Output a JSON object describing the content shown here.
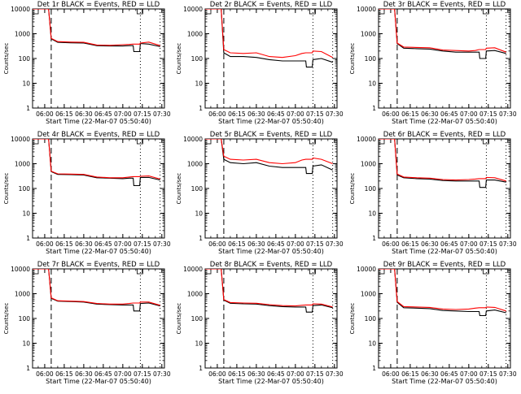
{
  "colors": {
    "events": "#000000",
    "lld": "#ff0000",
    "frame": "#000000",
    "background": "#ffffff"
  },
  "common": {
    "xlabel": "Start Time (22-Mar-07 05:50:40)",
    "ylabel": "Counts/sec",
    "xtick_labels": [
      "06:00",
      "06:15",
      "06:30",
      "06:45",
      "07:00",
      "07:15",
      "07:30"
    ],
    "ytick_labels": [
      "1",
      "10",
      "100",
      "1000",
      "10000"
    ],
    "xlim": [
      "05:50:40",
      "07:32:00"
    ],
    "ylim": [
      1,
      10000
    ],
    "yscale": "log",
    "grid": false,
    "markers_dashed_x": [
      "06:05:00"
    ],
    "markers_dotted_x": [
      "07:13:30",
      "07:28:40"
    ]
  },
  "chart_data": [
    {
      "type": "line",
      "title": "Det 1r BLACK = Events, RED = LLD",
      "x": [
        "05:50:40",
        "06:00:00",
        "06:03:00",
        "06:05:00",
        "06:10:00",
        "06:20:00",
        "06:30:00",
        "06:40:00",
        "06:50:00",
        "07:00:00",
        "07:05:00",
        "07:08:00",
        "07:08:30",
        "07:13:00",
        "07:13:30",
        "07:20:00",
        "07:28:40"
      ],
      "series": [
        {
          "name": "Events",
          "values": [
            10000,
            10000,
            10000,
            620,
            450,
            430,
            420,
            330,
            320,
            320,
            330,
            330,
            190,
            190,
            400,
            380,
            300
          ]
        },
        {
          "name": "LLD",
          "values": [
            10000,
            10000,
            10000,
            650,
            480,
            460,
            450,
            350,
            340,
            360,
            370,
            380,
            380,
            380,
            420,
            460,
            330
          ]
        }
      ]
    },
    {
      "type": "line",
      "title": "Det 2r BLACK = Events, RED = LLD",
      "x": [
        "05:50:40",
        "06:00:00",
        "06:03:00",
        "06:05:00",
        "06:10:00",
        "06:20:00",
        "06:30:00",
        "06:40:00",
        "06:50:00",
        "07:00:00",
        "07:05:00",
        "07:08:00",
        "07:08:30",
        "07:13:00",
        "07:13:30",
        "07:20:00",
        "07:28:40"
      ],
      "series": [
        {
          "name": "Events",
          "values": [
            10000,
            10000,
            10000,
            170,
            120,
            120,
            110,
            90,
            80,
            80,
            80,
            80,
            45,
            45,
            90,
            100,
            70
          ]
        },
        {
          "name": "LLD",
          "values": [
            10000,
            10000,
            10000,
            230,
            170,
            160,
            170,
            120,
            110,
            130,
            160,
            170,
            170,
            170,
            200,
            190,
            110
          ]
        }
      ]
    },
    {
      "type": "line",
      "title": "Det 3r BLACK = Events, RED = LLD",
      "x": [
        "05:50:40",
        "06:00:00",
        "06:03:00",
        "06:05:00",
        "06:10:00",
        "06:20:00",
        "06:30:00",
        "06:40:00",
        "06:50:00",
        "07:00:00",
        "07:05:00",
        "07:08:00",
        "07:08:30",
        "07:13:00",
        "07:13:30",
        "07:20:00",
        "07:28:40"
      ],
      "series": [
        {
          "name": "Events",
          "values": [
            10000,
            10000,
            10000,
            400,
            260,
            250,
            240,
            200,
            180,
            180,
            180,
            180,
            100,
            100,
            200,
            210,
            160
          ]
        },
        {
          "name": "LLD",
          "values": [
            10000,
            10000,
            10000,
            420,
            290,
            280,
            270,
            220,
            210,
            200,
            210,
            230,
            230,
            230,
            260,
            270,
            180
          ]
        }
      ]
    },
    {
      "type": "line",
      "title": "Det 4r BLACK = Events, RED = LLD",
      "x": [
        "05:50:40",
        "06:00:00",
        "06:03:00",
        "06:05:00",
        "06:10:00",
        "06:20:00",
        "06:30:00",
        "06:40:00",
        "06:50:00",
        "07:00:00",
        "07:05:00",
        "07:08:00",
        "07:08:30",
        "07:13:00",
        "07:13:30",
        "07:20:00",
        "07:28:40"
      ],
      "series": [
        {
          "name": "Events",
          "values": [
            10000,
            10000,
            10000,
            480,
            370,
            360,
            350,
            270,
            260,
            250,
            260,
            260,
            130,
            130,
            280,
            280,
            220
          ]
        },
        {
          "name": "LLD",
          "values": [
            10000,
            10000,
            10000,
            500,
            390,
            380,
            370,
            290,
            270,
            270,
            290,
            300,
            300,
            300,
            310,
            320,
            240
          ]
        }
      ]
    },
    {
      "type": "line",
      "title": "Det 5r BLACK = Events, RED = LLD",
      "x": [
        "05:50:40",
        "06:00:00",
        "06:03:00",
        "06:05:00",
        "06:10:00",
        "06:20:00",
        "06:30:00",
        "06:40:00",
        "06:50:00",
        "07:00:00",
        "07:05:00",
        "07:08:00",
        "07:08:30",
        "07:13:00",
        "07:13:30",
        "07:20:00",
        "07:28:40"
      ],
      "series": [
        {
          "name": "Events",
          "values": [
            10000,
            10000,
            10000,
            1500,
            1100,
            1000,
            1100,
            800,
            700,
            700,
            700,
            700,
            400,
            400,
            800,
            900,
            550
          ]
        },
        {
          "name": "LLD",
          "values": [
            10000,
            10000,
            10000,
            2000,
            1500,
            1400,
            1500,
            1100,
            1000,
            1100,
            1400,
            1500,
            1500,
            1500,
            1700,
            1500,
            1000
          ]
        }
      ]
    },
    {
      "type": "line",
      "title": "Det 6r BLACK = Events, RED = LLD",
      "x": [
        "05:50:40",
        "06:00:00",
        "06:03:00",
        "06:05:00",
        "06:10:00",
        "06:20:00",
        "06:30:00",
        "06:40:00",
        "06:50:00",
        "07:00:00",
        "07:05:00",
        "07:08:00",
        "07:08:30",
        "07:13:00",
        "07:13:30",
        "07:20:00",
        "07:28:40"
      ],
      "series": [
        {
          "name": "Events",
          "values": [
            10000,
            10000,
            10000,
            350,
            270,
            250,
            240,
            210,
            200,
            200,
            200,
            200,
            110,
            110,
            220,
            220,
            180
          ]
        },
        {
          "name": "LLD",
          "values": [
            10000,
            10000,
            10000,
            380,
            290,
            270,
            260,
            230,
            220,
            230,
            240,
            250,
            250,
            250,
            280,
            270,
            200
          ]
        }
      ]
    },
    {
      "type": "line",
      "title": "Det 7r BLACK = Events, RED = LLD",
      "x": [
        "05:50:40",
        "06:00:00",
        "06:03:00",
        "06:05:00",
        "06:10:00",
        "06:20:00",
        "06:30:00",
        "06:40:00",
        "06:50:00",
        "07:00:00",
        "07:05:00",
        "07:08:00",
        "07:08:30",
        "07:13:00",
        "07:13:30",
        "07:20:00",
        "07:28:40"
      ],
      "series": [
        {
          "name": "Events",
          "values": [
            10000,
            10000,
            10000,
            650,
            500,
            480,
            460,
            380,
            360,
            350,
            350,
            350,
            200,
            200,
            400,
            420,
            320
          ]
        },
        {
          "name": "LLD",
          "values": [
            10000,
            10000,
            10000,
            680,
            520,
            500,
            480,
            400,
            380,
            380,
            400,
            420,
            420,
            420,
            460,
            460,
            340
          ]
        }
      ]
    },
    {
      "type": "line",
      "title": "Det 8r BLACK = Events, RED = LLD",
      "x": [
        "05:50:40",
        "06:00:00",
        "06:03:00",
        "06:05:00",
        "06:10:00",
        "06:20:00",
        "06:30:00",
        "06:40:00",
        "06:50:00",
        "07:00:00",
        "07:05:00",
        "07:08:00",
        "07:08:30",
        "07:13:00",
        "07:13:30",
        "07:20:00",
        "07:28:40"
      ],
      "series": [
        {
          "name": "Events",
          "values": [
            10000,
            10000,
            10000,
            550,
            410,
            390,
            380,
            330,
            300,
            290,
            290,
            290,
            180,
            180,
            330,
            350,
            270
          ]
        },
        {
          "name": "LLD",
          "values": [
            10000,
            10000,
            10000,
            580,
            440,
            420,
            410,
            360,
            330,
            320,
            340,
            350,
            350,
            350,
            390,
            380,
            290
          ]
        }
      ]
    },
    {
      "type": "line",
      "title": "Det 9r BLACK = Events, RED = LLD",
      "x": [
        "05:50:40",
        "06:00:00",
        "06:03:00",
        "06:05:00",
        "06:10:00",
        "06:20:00",
        "06:30:00",
        "06:40:00",
        "06:50:00",
        "07:00:00",
        "07:05:00",
        "07:08:00",
        "07:08:30",
        "07:13:00",
        "07:13:30",
        "07:20:00",
        "07:28:40"
      ],
      "series": [
        {
          "name": "Events",
          "values": [
            10000,
            10000,
            10000,
            450,
            270,
            260,
            250,
            210,
            200,
            190,
            190,
            190,
            130,
            130,
            200,
            220,
            170
          ]
        },
        {
          "name": "LLD",
          "values": [
            10000,
            10000,
            10000,
            480,
            300,
            290,
            280,
            240,
            230,
            240,
            260,
            270,
            270,
            270,
            290,
            280,
            200
          ]
        }
      ]
    }
  ]
}
